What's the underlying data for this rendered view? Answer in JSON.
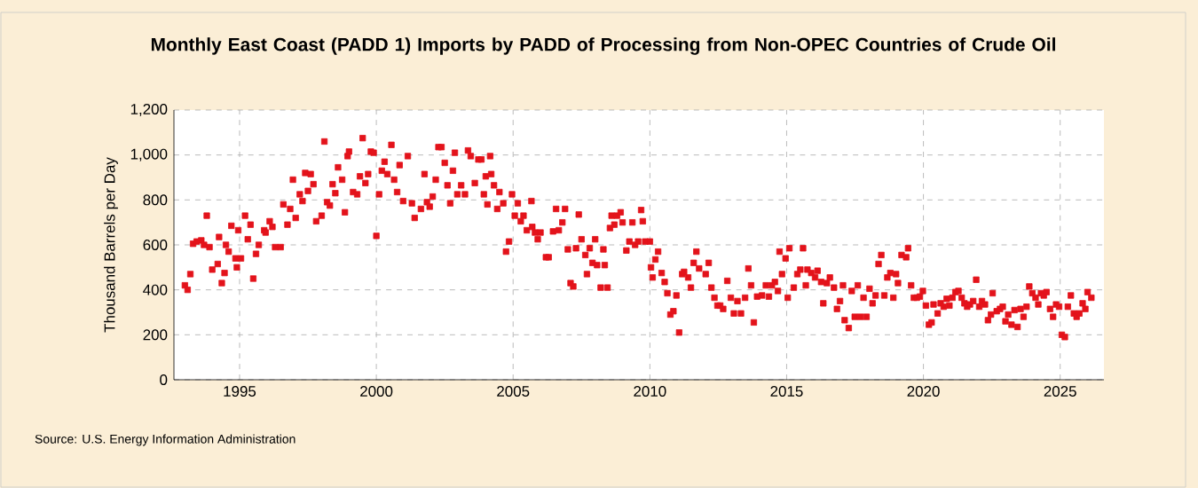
{
  "chart_data": {
    "type": "scatter",
    "title": "Monthly East Coast (PADD 1) Imports by PADD of Processing from Non-OPEC Countries of Crude Oil",
    "ylabel": "Thousand Barrels per Day",
    "annotations": [
      "Source: U.S. Energy Information Administration"
    ],
    "color": "#e3131b",
    "marker": "square",
    "grid": true,
    "xlim": [
      1992.6,
      2026.6
    ],
    "xticks": [
      1995,
      2000,
      2005,
      2010,
      2015,
      2020,
      2025
    ],
    "ylim": [
      0,
      1200
    ],
    "yticks": [
      0,
      200,
      400,
      600,
      800,
      {
        "value": 1000,
        "label": "1,000"
      },
      {
        "value": 1200,
        "label": "1,200"
      }
    ],
    "x": [
      1993.0,
      1993.1,
      1993.2,
      1993.3,
      1993.43,
      1993.6,
      1993.7,
      1993.8,
      1993.9,
      1994.0,
      1994.2,
      1994.25,
      1994.35,
      1994.45,
      1994.5,
      1994.6,
      1994.7,
      1994.85,
      1994.9,
      1994.95,
      1995.05,
      1995.2,
      1995.3,
      1995.4,
      1995.5,
      1995.6,
      1995.7,
      1995.9,
      1995.95,
      1996.1,
      1996.2,
      1996.3,
      1996.5,
      1996.6,
      1996.75,
      1996.85,
      1996.95,
      1997.05,
      1997.2,
      1997.3,
      1997.4,
      1997.5,
      1997.6,
      1997.7,
      1997.8,
      1998.0,
      1998.1,
      1998.2,
      1998.3,
      1998.4,
      1998.5,
      1998.6,
      1998.75,
      1998.85,
      1998.95,
      1999.0,
      1999.15,
      1999.3,
      1999.4,
      1999.5,
      1999.6,
      1999.7,
      1999.8,
      1999.9,
      2000.0,
      2000.1,
      2000.2,
      2000.3,
      2000.4,
      2000.55,
      2000.65,
      2000.76,
      2000.85,
      2000.98,
      2001.15,
      2001.3,
      2001.4,
      2001.63,
      2001.76,
      2001.85,
      2001.95,
      2002.06,
      2002.17,
      2002.27,
      2002.38,
      2002.5,
      2002.6,
      2002.7,
      2002.8,
      2002.87,
      2002.96,
      2003.1,
      2003.24,
      2003.35,
      2003.45,
      2003.6,
      2003.73,
      2003.84,
      2003.93,
      2004.0,
      2004.06,
      2004.16,
      2004.2,
      2004.3,
      2004.42,
      2004.5,
      2004.64,
      2004.74,
      2004.85,
      2004.96,
      2005.06,
      2005.17,
      2005.28,
      2005.38,
      2005.5,
      2005.67,
      2005.7,
      2005.8,
      2005.9,
      2006.0,
      2006.2,
      2006.3,
      2006.46,
      2006.57,
      2006.67,
      2006.8,
      2006.9,
      2007.0,
      2007.1,
      2007.2,
      2007.3,
      2007.4,
      2007.5,
      2007.64,
      2007.7,
      2007.8,
      2007.9,
      2008.0,
      2008.07,
      2008.2,
      2008.3,
      2008.35,
      2008.45,
      2008.54,
      2008.6,
      2008.7,
      2008.8,
      2008.93,
      2009.0,
      2009.14,
      2009.25,
      2009.36,
      2009.46,
      2009.57,
      2009.68,
      2009.74,
      2009.83,
      2010.0,
      2010.04,
      2010.1,
      2010.2,
      2010.3,
      2010.43,
      2010.54,
      2010.64,
      2010.75,
      2010.86,
      2010.97,
      2011.07,
      2011.18,
      2011.25,
      2011.4,
      2011.5,
      2011.6,
      2011.7,
      2011.8,
      2012.04,
      2012.15,
      2012.25,
      2012.36,
      2012.47,
      2012.57,
      2012.68,
      2012.83,
      2012.96,
      2013.07,
      2013.2,
      2013.33,
      2013.48,
      2013.6,
      2013.7,
      2013.8,
      2013.92,
      2014.1,
      2014.24,
      2014.35,
      2014.46,
      2014.57,
      2014.68,
      2014.74,
      2014.83,
      2014.96,
      2015.04,
      2015.1,
      2015.26,
      2015.39,
      2015.5,
      2015.6,
      2015.7,
      2015.76,
      2015.9,
      2016.04,
      2016.13,
      2016.26,
      2016.34,
      2016.47,
      2016.58,
      2016.73,
      2016.84,
      2016.95,
      2017.06,
      2017.12,
      2017.27,
      2017.38,
      2017.49,
      2017.6,
      2017.7,
      2017.81,
      2017.92,
      2018.03,
      2018.14,
      2018.25,
      2018.36,
      2018.46,
      2018.57,
      2018.68,
      2018.79,
      2018.9,
      2019.0,
      2019.07,
      2019.2,
      2019.37,
      2019.44,
      2019.55,
      2019.65,
      2019.76,
      2019.87,
      2019.98,
      2020.09,
      2020.2,
      2020.3,
      2020.37,
      2020.52,
      2020.63,
      2020.74,
      2020.85,
      2020.95,
      2021.06,
      2021.17,
      2021.28,
      2021.4,
      2021.5,
      2021.6,
      2021.7,
      2021.82,
      2021.93,
      2022.04,
      2022.14,
      2022.25,
      2022.36,
      2022.47,
      2022.53,
      2022.68,
      2022.8,
      2022.9,
      2023.0,
      2023.1,
      2023.22,
      2023.33,
      2023.44,
      2023.55,
      2023.66,
      2023.77,
      2023.87,
      2023.98,
      2024.1,
      2024.2,
      2024.3,
      2024.4,
      2024.5,
      2024.63,
      2024.74,
      2024.85,
      2024.96,
      2025.06,
      2025.17,
      2025.28,
      2025.39,
      2025.5,
      2025.6,
      2025.7,
      2025.82,
      2025.92,
      2026.0,
      2026.14
    ],
    "values": [
      420,
      400,
      470,
      605,
      615,
      620,
      600,
      730,
      590,
      490,
      515,
      635,
      430,
      475,
      600,
      570,
      685,
      540,
      500,
      665,
      540,
      730,
      625,
      690,
      450,
      560,
      600,
      665,
      655,
      705,
      680,
      590,
      590,
      780,
      690,
      760,
      890,
      720,
      825,
      795,
      920,
      840,
      915,
      870,
      705,
      730,
      1060,
      790,
      775,
      870,
      830,
      945,
      890,
      745,
      995,
      1015,
      835,
      825,
      905,
      1075,
      875,
      915,
      1015,
      1010,
      640,
      825,
      930,
      970,
      915,
      1045,
      890,
      835,
      955,
      795,
      995,
      785,
      720,
      760,
      915,
      790,
      770,
      815,
      890,
      1035,
      1035,
      965,
      865,
      785,
      930,
      1010,
      825,
      865,
      825,
      1020,
      995,
      875,
      980,
      980,
      825,
      905,
      780,
      995,
      915,
      865,
      760,
      835,
      785,
      570,
      615,
      825,
      730,
      785,
      705,
      730,
      665,
      795,
      680,
      655,
      625,
      655,
      545,
      545,
      660,
      760,
      665,
      700,
      760,
      580,
      430,
      415,
      585,
      735,
      625,
      555,
      470,
      585,
      520,
      625,
      510,
      410,
      580,
      510,
      410,
      675,
      730,
      690,
      730,
      745,
      700,
      575,
      615,
      700,
      600,
      615,
      755,
      705,
      615,
      615,
      500,
      455,
      535,
      570,
      475,
      435,
      385,
      290,
      305,
      375,
      210,
      470,
      480,
      455,
      410,
      520,
      570,
      495,
      470,
      520,
      410,
      365,
      330,
      330,
      315,
      440,
      365,
      295,
      350,
      295,
      365,
      495,
      420,
      255,
      370,
      375,
      420,
      370,
      420,
      435,
      395,
      570,
      470,
      540,
      365,
      585,
      410,
      470,
      490,
      585,
      420,
      490,
      475,
      455,
      485,
      435,
      340,
      430,
      455,
      410,
      315,
      350,
      420,
      265,
      230,
      395,
      280,
      420,
      280,
      365,
      280,
      405,
      340,
      375,
      515,
      555,
      375,
      455,
      475,
      365,
      470,
      430,
      555,
      545,
      585,
      420,
      365,
      365,
      370,
      395,
      330,
      245,
      255,
      335,
      295,
      340,
      325,
      360,
      330,
      365,
      390,
      395,
      365,
      340,
      325,
      335,
      350,
      445,
      325,
      350,
      335,
      265,
      290,
      385,
      305,
      315,
      325,
      260,
      290,
      245,
      310,
      235,
      315,
      280,
      325,
      415,
      385,
      365,
      335,
      385,
      375,
      390,
      315,
      280,
      335,
      325,
      200,
      190,
      325,
      375,
      295,
      280,
      295,
      340,
      315,
      390,
      365
    ]
  }
}
